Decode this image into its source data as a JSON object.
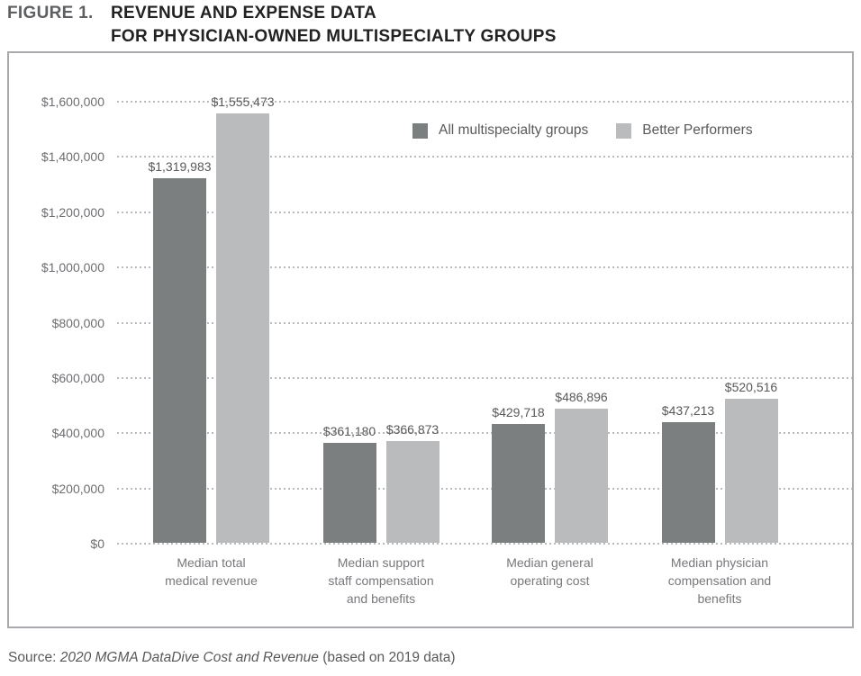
{
  "figure": {
    "label": "FIGURE 1.",
    "title_line1": "REVENUE AND EXPENSE DATA",
    "title_line2": "FOR PHYSICIAN-OWNED MULTISPECIALTY GROUPS"
  },
  "chart_data": {
    "type": "bar",
    "title": "FIGURE 1. Revenue and expense data for physician-owned multispecialty groups",
    "categories": [
      "Median total medical revenue",
      "Median support staff compensation and benefits",
      "Median general operating cost",
      "Median physician compensation and benefits"
    ],
    "category_lines": [
      [
        "Median total",
        "medical revenue"
      ],
      [
        "Median support",
        "staff compensation",
        "and benefits"
      ],
      [
        "Median general",
        "operating cost"
      ],
      [
        "Median physician",
        "compensation and",
        "benefits"
      ]
    ],
    "series": [
      {
        "name": "All multispecialty groups",
        "color": "#7b7f80",
        "values": [
          1319983,
          361180,
          429718,
          437213
        ],
        "labels": [
          "$1,319,983",
          "$361,180",
          "$429,718",
          "$437,213"
        ]
      },
      {
        "name": "Better Performers",
        "color": "#b9bbbc",
        "values": [
          1555473,
          366873,
          486896,
          520516
        ],
        "labels": [
          "$1,555,473",
          "$366,873",
          "$486,896",
          "$520,516"
        ]
      }
    ],
    "xlabel": "",
    "ylabel": "",
    "ylim": [
      0,
      1600000
    ],
    "ytick_step": 200000,
    "ytick_labels": [
      "$0",
      "$200,000",
      "$400,000",
      "$600,000",
      "$800,000",
      "$1,000,000",
      "$1,200,000",
      "$1,400,000",
      "$1,600,000"
    ],
    "grid": "horizontal-dotted",
    "legend_position": "inside-top-right"
  },
  "source": {
    "prefix": "Source: ",
    "citation": "2020 MGMA DataDive Cost and Revenue",
    "suffix": " (based on 2019 data)"
  },
  "colors": {
    "series_all_groups": "#7b7f80",
    "series_better_performers": "#b9bbbc",
    "grid_dots": "#b9bbbc",
    "box_border": "#a8aaad",
    "ytick_text": "#6d6e71",
    "value_text": "#58595b",
    "category_text": "#77787b",
    "title_main": "#222223",
    "title_figure_label": "#5d5f62"
  }
}
